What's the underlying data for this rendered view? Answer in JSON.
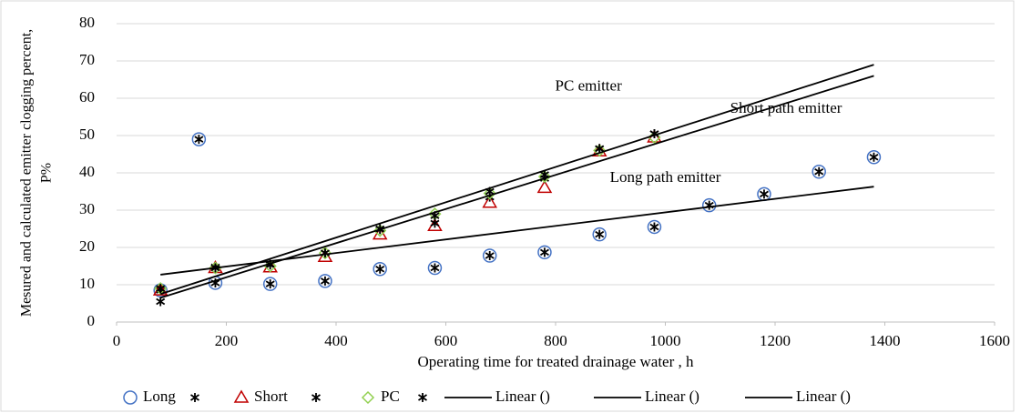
{
  "chart_data": {
    "type": "scatter",
    "xlabel": "Operating time for treated drainage water , h",
    "ylabel": [
      "Mesured and calculated emitter clogging percent,",
      "P%"
    ],
    "xlim": [
      0,
      1600
    ],
    "xticks": [
      0,
      200,
      400,
      600,
      800,
      1000,
      1200,
      1400,
      1600
    ],
    "ylim": [
      0,
      80
    ],
    "yticks": [
      0,
      10,
      20,
      30,
      40,
      50,
      60,
      70,
      80
    ],
    "grid": true,
    "legend": "bottom",
    "annotations": [
      {
        "text": "PC emitter",
        "x": 860,
        "y": 63
      },
      {
        "text": "Short path emitter",
        "x": 1220,
        "y": 57
      },
      {
        "text": "Long path emitter",
        "x": 1000,
        "y": 38.5
      }
    ],
    "series": [
      {
        "name": "Long",
        "marker": "circle",
        "color": "#4472c4",
        "x": [
          80,
          150,
          180,
          280,
          380,
          480,
          580,
          680,
          780,
          880,
          980,
          1080,
          1180,
          1280,
          1380
        ],
        "values": [
          8.5,
          49,
          10.5,
          10.2,
          11,
          14.2,
          14.5,
          17.8,
          18.7,
          23.5,
          25.5,
          31.3,
          34.3,
          40.3,
          44.2
        ]
      },
      {
        "marker": "asterisk",
        "color": "#000000",
        "x": [
          80,
          150,
          180,
          280,
          380,
          480,
          580,
          680,
          780,
          880,
          980,
          1080,
          1180,
          1280,
          1380
        ],
        "values": [
          8.5,
          49,
          10.5,
          10.2,
          11,
          14.2,
          14.5,
          17.8,
          18.7,
          23.5,
          25.5,
          31.3,
          34.3,
          40.3,
          44.2
        ]
      },
      {
        "name": "Short",
        "marker": "triangle",
        "color": "#c00000",
        "x": [
          80,
          180,
          280,
          380,
          480,
          580,
          680,
          780,
          880,
          980
        ],
        "values": [
          8.5,
          14.5,
          14.7,
          17.5,
          23.5,
          25.8,
          32,
          36,
          45.8,
          49.5
        ]
      },
      {
        "marker": "asterisk",
        "color": "#000000",
        "x": [
          80,
          180,
          280,
          380,
          480,
          580,
          680,
          780,
          880,
          980
        ],
        "values": [
          5.5,
          14.8,
          15.3,
          18.5,
          24.8,
          26.5,
          33.5,
          38.5,
          46.5,
          50.5
        ]
      },
      {
        "name": "PC",
        "marker": "diamond",
        "color": "#92d050",
        "x": [
          80,
          180,
          280,
          380,
          480,
          580,
          680,
          780,
          880,
          980
        ],
        "values": [
          9,
          14.5,
          15,
          18.5,
          24.5,
          29,
          34.5,
          39,
          46,
          49.5
        ]
      },
      {
        "marker": "asterisk",
        "color": "#000000",
        "x": [
          80,
          180,
          280,
          380,
          480,
          580,
          680,
          780,
          880,
          980
        ],
        "values": [
          9,
          14.5,
          15.5,
          18.5,
          25,
          28.5,
          35,
          39.5,
          46.5,
          50.5
        ]
      },
      {
        "name": "Linear ()",
        "marker": "line",
        "color": "#000000",
        "x": [
          80,
          1380
        ],
        "values": [
          12.7,
          36.3
        ]
      },
      {
        "name": "Linear ()",
        "marker": "line",
        "color": "#000000",
        "x": [
          80,
          1380
        ],
        "values": [
          6.5,
          66
        ]
      },
      {
        "name": "Linear ()",
        "marker": "line",
        "color": "#000000",
        "x": [
          80,
          1380
        ],
        "values": [
          7.5,
          69
        ]
      }
    ]
  }
}
